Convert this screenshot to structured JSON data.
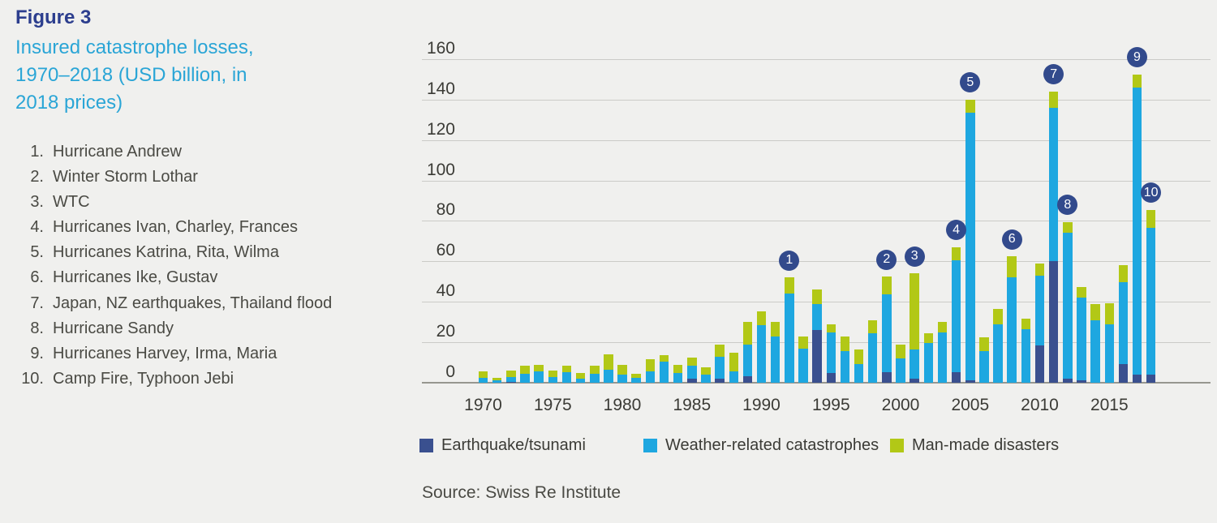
{
  "figure": {
    "label": "Figure 3",
    "title_lines": [
      "Insured catastrophe losses,",
      "1970–2018 (USD billion, in",
      "2018 prices)"
    ]
  },
  "events": [
    {
      "num": "1.",
      "label": "Hurricane Andrew"
    },
    {
      "num": "2.",
      "label": "Winter Storm Lothar"
    },
    {
      "num": "3.",
      "label": "WTC"
    },
    {
      "num": "4.",
      "label": "Hurricanes Ivan, Charley, Frances"
    },
    {
      "num": "5.",
      "label": "Hurricanes Katrina, Rita, Wilma"
    },
    {
      "num": "6.",
      "label": "Hurricanes Ike, Gustav"
    },
    {
      "num": "7.",
      "label": "Japan, NZ earthquakes, Thailand flood"
    },
    {
      "num": "8.",
      "label": "Hurricane Sandy"
    },
    {
      "num": "9.",
      "label": "Hurricanes Harvey, Irma, Maria"
    },
    {
      "num": "10.",
      "label": "Camp Fire, Typhoon Jebi"
    }
  ],
  "chart_data": {
    "type": "bar",
    "stacked": true,
    "title": "Insured catastrophe losses, 1970–2018 (USD billion, in 2018 prices)",
    "xlabel": "",
    "ylabel": "USD billion (2018 prices)",
    "ylim": [
      0,
      160
    ],
    "yticks": [
      0,
      20,
      40,
      60,
      80,
      100,
      120,
      140,
      160
    ],
    "xticks": [
      1970,
      1975,
      1980,
      1985,
      1990,
      1995,
      2000,
      2005,
      2010,
      2015
    ],
    "grid": "horizontal",
    "legend_position": "bottom",
    "years": [
      1970,
      1971,
      1972,
      1973,
      1974,
      1975,
      1976,
      1977,
      1978,
      1979,
      1980,
      1981,
      1982,
      1983,
      1984,
      1985,
      1986,
      1987,
      1988,
      1989,
      1990,
      1991,
      1992,
      1993,
      1994,
      1995,
      1996,
      1997,
      1998,
      1999,
      2000,
      2001,
      2002,
      2003,
      2004,
      2005,
      2006,
      2007,
      2008,
      2009,
      2010,
      2011,
      2012,
      2013,
      2014,
      2015,
      2016,
      2017,
      2018
    ],
    "series": [
      {
        "name": "Earthquake/tsunami",
        "color": "#3a508f",
        "values": [
          0,
          0,
          0.5,
          0,
          0,
          0,
          0,
          0,
          0,
          0,
          0,
          0,
          0,
          0,
          0,
          2,
          0,
          2,
          0,
          3,
          0,
          0,
          0,
          0,
          26,
          5,
          0,
          0,
          0,
          5,
          0,
          2,
          0,
          0,
          5,
          1,
          0,
          0,
          0,
          0,
          18.5,
          60,
          2,
          1,
          0,
          0,
          9,
          4,
          4
        ]
      },
      {
        "name": "Weather-related catastrophes",
        "color": "#1ea7e0",
        "values": [
          2.5,
          1,
          2.5,
          4.5,
          5.5,
          3,
          5,
          2,
          4.5,
          6.5,
          4,
          2.5,
          5.5,
          10.5,
          5,
          6.5,
          4,
          11,
          5.5,
          16,
          28.5,
          23,
          44,
          17,
          13,
          20,
          15.5,
          9,
          24.5,
          38.5,
          12,
          14.5,
          19.5,
          25,
          55.5,
          132.5,
          15.5,
          29,
          52,
          26.5,
          34.5,
          76,
          72,
          41,
          31,
          29,
          40.5,
          142,
          72.5
        ]
      },
      {
        "name": "Man-made disasters",
        "color": "#b2c816",
        "values": [
          3,
          1.5,
          3,
          4,
          3.5,
          3,
          3.5,
          3,
          4,
          7.5,
          5,
          2,
          6,
          3,
          4,
          4,
          3.5,
          6,
          9.5,
          11,
          7,
          7,
          8,
          6,
          7,
          4,
          7.5,
          7.5,
          6.5,
          9,
          7,
          37.5,
          5,
          5,
          6.5,
          6.5,
          7,
          7.5,
          10.5,
          5,
          6,
          8,
          5.5,
          5.5,
          8,
          10.5,
          8.5,
          6.5,
          9
        ]
      }
    ],
    "callouts": [
      {
        "num": "1",
        "year": 1992
      },
      {
        "num": "2",
        "year": 1999
      },
      {
        "num": "3",
        "year": 2001
      },
      {
        "num": "4",
        "year": 2004
      },
      {
        "num": "5",
        "year": 2005
      },
      {
        "num": "6",
        "year": 2008
      },
      {
        "num": "7",
        "year": 2011
      },
      {
        "num": "8",
        "year": 2012
      },
      {
        "num": "9",
        "year": 2017
      },
      {
        "num": "10",
        "year": 2018
      }
    ]
  },
  "legend": {
    "items": [
      {
        "label": "Earthquake/tsunami",
        "color": "#3a508f"
      },
      {
        "label": "Weather-related catastrophes",
        "color": "#1ea7e0"
      },
      {
        "label": "Man-made disasters",
        "color": "#b2c816"
      }
    ]
  },
  "source": "Source: Swiss Re Institute",
  "colors": {
    "background": "#f0f0ee",
    "figure_label": "#2c3e8e",
    "figure_title": "#2aa5d6",
    "callout_circle": "#324a8c",
    "gridline": "#cbcbc7",
    "axis_baseline": "#97978f",
    "tick_text": "#3b3b36",
    "body_text": "#4a4a44"
  }
}
